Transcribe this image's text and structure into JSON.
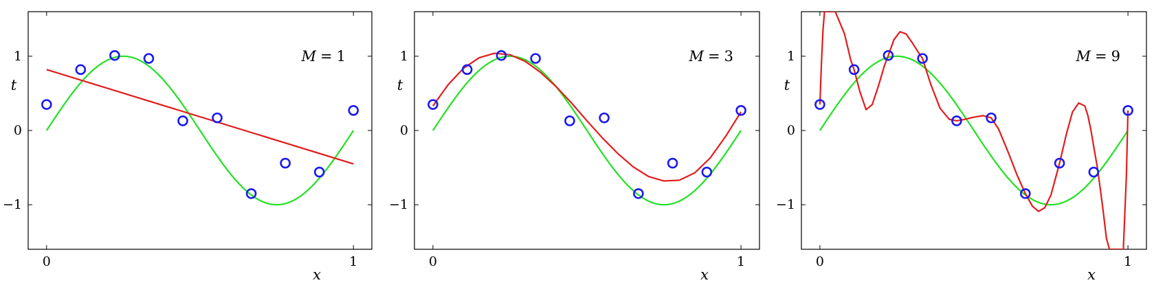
{
  "chart_data": [
    {
      "type": "scatter",
      "xlabel": "x",
      "ylabel": "t",
      "annotation": {
        "var": "M",
        "eq": "=",
        "value": "1"
      },
      "xlim": [
        -0.06,
        1.06
      ],
      "ylim": [
        -1.6,
        1.6
      ],
      "xticks": [
        0,
        1
      ],
      "yticks": [
        -1,
        0,
        1
      ],
      "xtick_labels": [
        "0",
        "1"
      ],
      "ytick_labels": [
        "−1",
        "0",
        "1"
      ],
      "grid": false,
      "points": {
        "x": [
          0,
          0.111,
          0.222,
          0.333,
          0.444,
          0.556,
          0.667,
          0.778,
          0.889,
          1.0
        ],
        "y": [
          0.35,
          0.82,
          1.01,
          0.97,
          0.13,
          0.17,
          -0.85,
          -0.44,
          -0.56,
          0.27
        ]
      },
      "series": [
        {
          "kind": "sin",
          "color": "#22e022"
        },
        {
          "kind": "poly",
          "color": "#e21b1b",
          "x": [
            0,
            1
          ],
          "y": [
            0.82,
            -0.45
          ]
        }
      ],
      "colors": {
        "points": "#1a1aee",
        "true": "#22e022",
        "fit": "#e21b1b"
      }
    },
    {
      "type": "scatter",
      "xlabel": "x",
      "ylabel": "t",
      "annotation": {
        "var": "M",
        "eq": "=",
        "value": "3"
      },
      "xlim": [
        -0.06,
        1.06
      ],
      "ylim": [
        -1.6,
        1.6
      ],
      "xticks": [
        0,
        1
      ],
      "yticks": [
        -1,
        0,
        1
      ],
      "xtick_labels": [
        "0",
        "1"
      ],
      "ytick_labels": [
        "−1",
        "0",
        "1"
      ],
      "grid": false,
      "points": {
        "x": [
          0,
          0.111,
          0.222,
          0.333,
          0.444,
          0.556,
          0.667,
          0.778,
          0.889,
          1.0
        ],
        "y": [
          0.35,
          0.82,
          1.01,
          0.97,
          0.13,
          0.17,
          -0.85,
          -0.44,
          -0.56,
          0.27
        ]
      },
      "series": [
        {
          "kind": "sin",
          "color": "#22e022"
        },
        {
          "kind": "poly",
          "color": "#e21b1b",
          "x": [
            0,
            0.05,
            0.1,
            0.15,
            0.2,
            0.25,
            0.3,
            0.35,
            0.4,
            0.45,
            0.5,
            0.55,
            0.6,
            0.65,
            0.7,
            0.75,
            0.8,
            0.85,
            0.9,
            0.95,
            1.0
          ],
          "y": [
            0.33,
            0.62,
            0.84,
            0.98,
            1.04,
            1.02,
            0.93,
            0.78,
            0.59,
            0.37,
            0.13,
            -0.1,
            -0.31,
            -0.49,
            -0.62,
            -0.68,
            -0.67,
            -0.57,
            -0.37,
            -0.08,
            0.25
          ]
        }
      ],
      "colors": {
        "points": "#1a1aee",
        "true": "#22e022",
        "fit": "#e21b1b"
      }
    },
    {
      "type": "scatter",
      "xlabel": "x",
      "ylabel": "t",
      "annotation": {
        "var": "M",
        "eq": "=",
        "value": "9"
      },
      "xlim": [
        -0.06,
        1.06
      ],
      "ylim": [
        -1.6,
        1.6
      ],
      "xticks": [
        0,
        1
      ],
      "yticks": [
        -1,
        0,
        1
      ],
      "xtick_labels": [
        "0",
        "1"
      ],
      "ytick_labels": [
        "−1",
        "0",
        "1"
      ],
      "grid": false,
      "points": {
        "x": [
          0,
          0.111,
          0.222,
          0.333,
          0.444,
          0.556,
          0.667,
          0.778,
          0.889,
          1.0
        ],
        "y": [
          0.35,
          0.82,
          1.01,
          0.97,
          0.13,
          0.17,
          -0.85,
          -0.44,
          -0.56,
          0.27
        ]
      },
      "series": [
        {
          "kind": "sin",
          "color": "#22e022"
        },
        {
          "kind": "poly",
          "color": "#e21b1b",
          "x": [
            0,
            0.005,
            0.01,
            0.015,
            0.02,
            0.05,
            0.08,
            0.1,
            0.111,
            0.13,
            0.15,
            0.17,
            0.19,
            0.21,
            0.222,
            0.24,
            0.26,
            0.28,
            0.3,
            0.32,
            0.333,
            0.36,
            0.39,
            0.42,
            0.444,
            0.47,
            0.5,
            0.53,
            0.556,
            0.58,
            0.61,
            0.64,
            0.667,
            0.69,
            0.71,
            0.73,
            0.75,
            0.778,
            0.8,
            0.82,
            0.84,
            0.86,
            0.87,
            0.88,
            0.889,
            0.9,
            0.91,
            0.92,
            0.93,
            0.94,
            0.95,
            0.97,
            0.985,
            0.995,
            1.0
          ],
          "y": [
            0.35,
            0.9,
            1.35,
            1.6,
            1.6,
            1.6,
            1.3,
            0.95,
            0.82,
            0.52,
            0.28,
            0.35,
            0.6,
            0.88,
            1.01,
            1.22,
            1.33,
            1.3,
            1.18,
            1.05,
            0.97,
            0.62,
            0.3,
            0.15,
            0.13,
            0.15,
            0.18,
            0.2,
            0.17,
            0.02,
            -0.28,
            -0.6,
            -0.85,
            -1.02,
            -1.09,
            -1.04,
            -0.87,
            -0.44,
            -0.05,
            0.25,
            0.37,
            0.33,
            0.2,
            0.0,
            -0.22,
            -0.48,
            -0.78,
            -1.1,
            -1.45,
            -1.6,
            -1.6,
            -1.6,
            -1.6,
            -0.6,
            0.27
          ]
        }
      ],
      "colors": {
        "points": "#1a1aee",
        "true": "#22e022",
        "fit": "#e21b1b"
      }
    }
  ]
}
